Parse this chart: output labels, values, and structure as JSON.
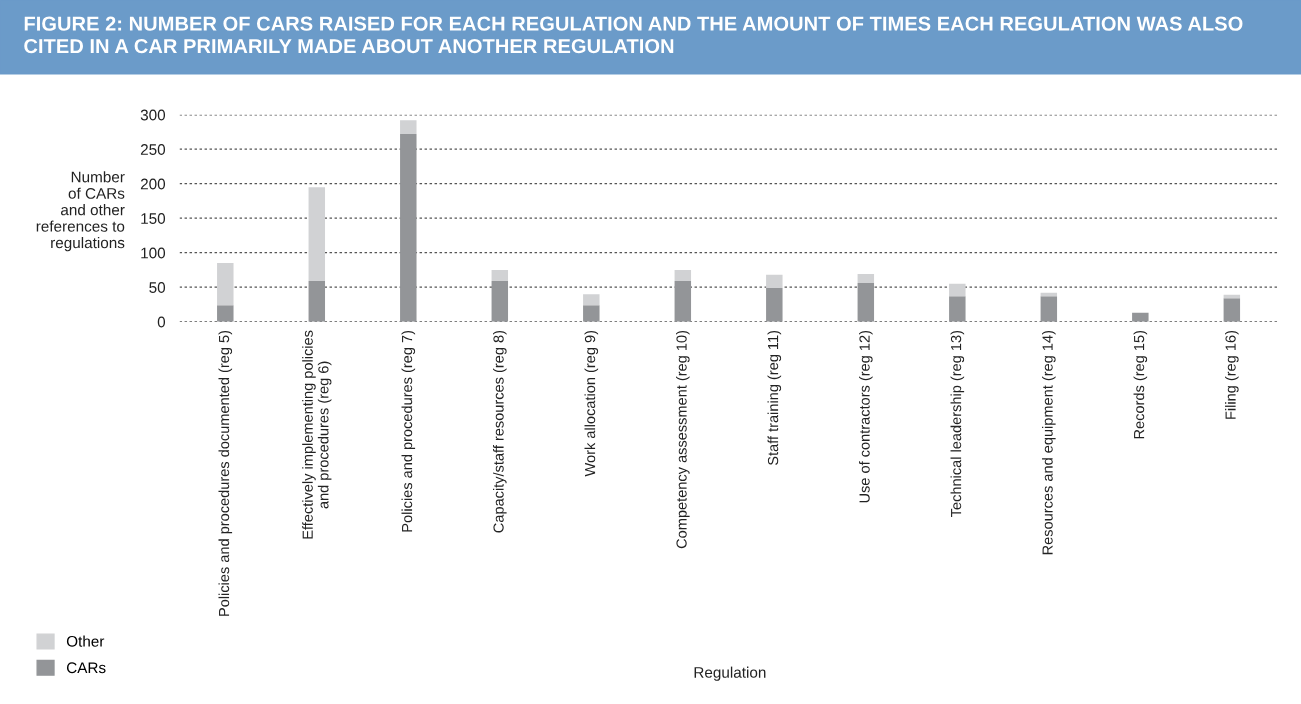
{
  "chart_data": {
    "type": "bar",
    "title": "FIGURE 2: NUMBER OF CARS RAISED FOR EACH REGULATION AND THE AMOUNT OF TIMES EACH REGULATION WAS ALSO CITED IN A CAR PRIMARILY MADE ABOUT ANOTHER REGULATION",
    "xlabel": "Regulation",
    "ylabel": "Number\nof CARs\nand other\nreferences to\nregulations",
    "categories": [
      "Policies and procedures documented (reg 5)",
      "Effectively implementing policies\nand procedures (reg 6)",
      "Policies and procedures (reg 7)",
      "Capacity/staff resources (reg 8)",
      "Work allocation (reg 9)",
      "Competency assessment (reg 10)",
      "Staff training (reg 11)",
      "Use of contractors (reg 12)",
      "Technical leadership (reg 13)",
      "Resources and equipment (reg 14)",
      "Records (reg 15)",
      "Filing (reg 16)"
    ],
    "stacked": true,
    "series": [
      {
        "name": "CARs",
        "color": "#939598",
        "values": [
          24,
          59,
          272,
          59,
          24,
          59,
          49,
          56,
          37,
          37,
          13,
          34
        ]
      },
      {
        "name": "Other",
        "color": "#d1d2d4",
        "values": [
          61,
          136,
          20,
          16,
          16,
          16,
          19,
          13,
          18,
          5,
          0,
          5
        ]
      }
    ],
    "ylim": [
      0,
      300
    ],
    "yticks": [
      0,
      50,
      100,
      150,
      200,
      250,
      300
    ],
    "grid": "y",
    "legend": "bottom left"
  }
}
